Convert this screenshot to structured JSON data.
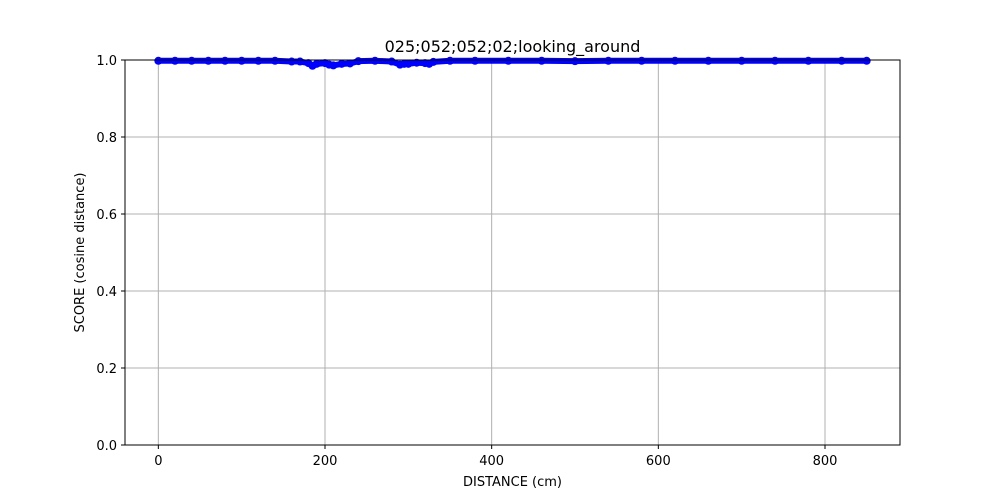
{
  "chart_data": {
    "type": "scatter",
    "title": "025;052;052;02;looking_around",
    "xlabel": "DISTANCE (cm)",
    "ylabel": "SCORE (cosine distance)",
    "xlim": [
      -40,
      890
    ],
    "ylim": [
      0.0,
      1.0
    ],
    "xticks": [
      0,
      200,
      400,
      600,
      800
    ],
    "yticks": [
      0.0,
      0.2,
      0.4,
      0.6,
      0.8,
      1.0
    ],
    "xtick_labels": [
      "0",
      "200",
      "400",
      "600",
      "800"
    ],
    "ytick_labels": [
      "0.0",
      "0.2",
      "0.4",
      "0.6",
      "0.8",
      "1.0"
    ],
    "grid": true,
    "marker_color": "#0000ff",
    "series": [
      {
        "x": [
          0,
          20,
          40,
          60,
          80,
          100,
          120,
          140,
          160,
          170,
          180,
          185,
          190,
          200,
          205,
          210,
          220,
          230,
          240,
          260,
          280,
          290,
          295,
          300,
          310,
          320,
          325,
          330,
          350,
          380,
          420,
          460,
          500,
          540,
          580,
          620,
          660,
          700,
          740,
          780,
          820,
          850
        ],
        "y": [
          0.998,
          0.998,
          0.998,
          0.998,
          0.998,
          0.998,
          0.998,
          0.998,
          0.996,
          0.996,
          0.992,
          0.985,
          0.99,
          0.992,
          0.988,
          0.986,
          0.99,
          0.991,
          0.997,
          0.998,
          0.996,
          0.988,
          0.99,
          0.99,
          0.993,
          0.992,
          0.99,
          0.995,
          0.998,
          0.998,
          0.998,
          0.998,
          0.997,
          0.998,
          0.998,
          0.998,
          0.998,
          0.998,
          0.998,
          0.998,
          0.998,
          0.998
        ]
      }
    ]
  }
}
